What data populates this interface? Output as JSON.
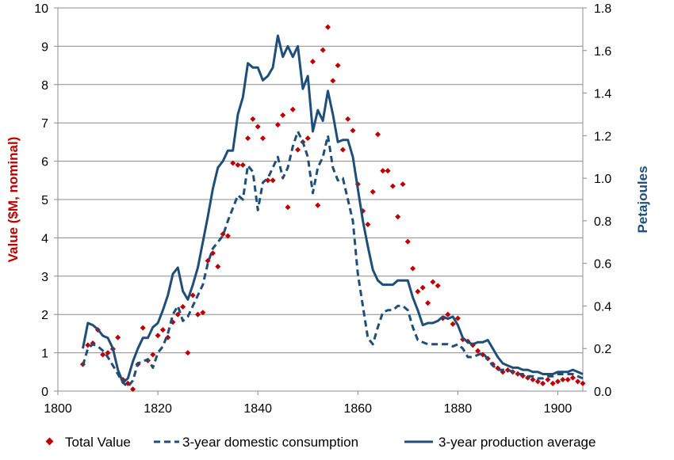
{
  "chart_data": {
    "type": "line",
    "title": "",
    "xlabel": "",
    "ylabel_left": "Value ($M, nominal)",
    "ylabel_right": "Petajoules",
    "xlim": [
      1800,
      1905
    ],
    "ylim_left": [
      0,
      10
    ],
    "ylim_right": [
      0,
      1.8
    ],
    "x_ticks": [
      "1800",
      "1820",
      "1840",
      "1860",
      "1880",
      "1900"
    ],
    "x_tick_values": [
      1800,
      1820,
      1840,
      1860,
      1880,
      1900
    ],
    "y_left_ticks": [
      "0",
      "1",
      "2",
      "3",
      "4",
      "5",
      "6",
      "7",
      "8",
      "9",
      "10"
    ],
    "y_left_tick_values": [
      0,
      1,
      2,
      3,
      4,
      5,
      6,
      7,
      8,
      9,
      10
    ],
    "y_right_ticks": [
      "0.0",
      "0.2",
      "0.4",
      "0.6",
      "0.8",
      "1.0",
      "1.2",
      "1.4",
      "1.6",
      "1.8"
    ],
    "y_right_tick_values": [
      0,
      0.2,
      0.4,
      0.6,
      0.8,
      1.0,
      1.2,
      1.4,
      1.6,
      1.8
    ],
    "grid": true,
    "legend_position": "bottom",
    "series": [
      {
        "name": "Total Value",
        "kind": "scatter",
        "axis": "left",
        "color": "#c00000",
        "x": [
          1805,
          1806,
          1807,
          1808,
          1809,
          1810,
          1811,
          1812,
          1813,
          1814,
          1815,
          1816,
          1817,
          1818,
          1819,
          1820,
          1821,
          1822,
          1823,
          1824,
          1825,
          1826,
          1827,
          1828,
          1829,
          1830,
          1831,
          1832,
          1833,
          1834,
          1835,
          1836,
          1837,
          1838,
          1839,
          1840,
          1841,
          1842,
          1843,
          1844,
          1845,
          1846,
          1847,
          1848,
          1849,
          1850,
          1851,
          1852,
          1853,
          1854,
          1855,
          1856,
          1857,
          1858,
          1859,
          1860,
          1861,
          1862,
          1863,
          1864,
          1865,
          1866,
          1867,
          1868,
          1869,
          1870,
          1871,
          1872,
          1873,
          1874,
          1875,
          1876,
          1877,
          1878,
          1879,
          1880,
          1881,
          1882,
          1883,
          1884,
          1885,
          1886,
          1887,
          1888,
          1889,
          1890,
          1891,
          1892,
          1893,
          1894,
          1895,
          1896,
          1897,
          1898,
          1899,
          1900,
          1901,
          1902,
          1903,
          1904,
          1905
        ],
        "y": [
          0.7,
          1.2,
          1.25,
          1.6,
          0.95,
          1.0,
          1.1,
          1.4,
          0.3,
          0.2,
          0.05,
          0.7,
          1.65,
          0.8,
          0.95,
          1.45,
          1.6,
          1.4,
          1.8,
          2.0,
          2.2,
          1.0,
          2.5,
          2.0,
          2.05,
          3.4,
          3.6,
          3.25,
          4.1,
          4.05,
          5.95,
          5.9,
          5.9,
          6.6,
          7.1,
          6.9,
          6.6,
          5.5,
          5.5,
          6.95,
          7.2,
          4.8,
          7.35,
          6.3,
          6.5,
          6.6,
          8.6,
          4.85,
          8.9,
          9.5,
          8.1,
          8.5,
          6.3,
          7.1,
          6.8,
          5.4,
          4.7,
          4.35,
          5.2,
          6.7,
          5.75,
          5.75,
          5.35,
          4.55,
          5.4,
          3.9,
          3.2,
          2.6,
          2.7,
          2.3,
          2.85,
          2.75,
          1.9,
          2.0,
          1.75,
          1.9,
          1.35,
          1.3,
          1.2,
          1.05,
          0.95,
          0.85,
          0.7,
          0.6,
          0.5,
          0.55,
          0.5,
          0.45,
          0.4,
          0.35,
          0.3,
          0.25,
          0.2,
          0.3,
          0.2,
          0.25,
          0.3,
          0.3,
          0.35,
          0.25,
          0.2
        ]
      },
      {
        "name": "3-year domestic consumption",
        "kind": "line",
        "style": "dashed",
        "axis": "right",
        "color": "#1f4e79",
        "x": [
          1805,
          1806,
          1807,
          1808,
          1809,
          1810,
          1811,
          1812,
          1813,
          1814,
          1815,
          1816,
          1817,
          1818,
          1819,
          1820,
          1821,
          1822,
          1823,
          1824,
          1825,
          1826,
          1827,
          1828,
          1829,
          1830,
          1831,
          1832,
          1833,
          1834,
          1835,
          1836,
          1837,
          1838,
          1839,
          1840,
          1841,
          1842,
          1843,
          1844,
          1845,
          1846,
          1847,
          1848,
          1849,
          1850,
          1851,
          1852,
          1853,
          1854,
          1855,
          1856,
          1857,
          1858,
          1859,
          1860,
          1861,
          1862,
          1863,
          1864,
          1865,
          1866,
          1867,
          1868,
          1869,
          1870,
          1871,
          1872,
          1873,
          1874,
          1875,
          1876,
          1877,
          1878,
          1879,
          1880,
          1881,
          1882,
          1883,
          1884,
          1885,
          1886,
          1887,
          1888,
          1889,
          1890,
          1891,
          1892,
          1893,
          1894,
          1895,
          1896,
          1897,
          1898,
          1899,
          1900,
          1901,
          1902,
          1903,
          1904,
          1905
        ],
        "y": [
          0.12,
          0.2,
          0.22,
          0.21,
          0.19,
          0.16,
          0.12,
          0.08,
          0.04,
          0.02,
          0.05,
          0.13,
          0.14,
          0.15,
          0.11,
          0.18,
          0.21,
          0.27,
          0.36,
          0.4,
          0.33,
          0.35,
          0.4,
          0.45,
          0.5,
          0.6,
          0.67,
          0.7,
          0.73,
          0.8,
          0.86,
          0.92,
          0.9,
          1.06,
          1.03,
          0.85,
          0.98,
          1.0,
          1.05,
          1.1,
          1.0,
          1.05,
          1.15,
          1.22,
          1.17,
          1.1,
          0.93,
          1.05,
          1.1,
          1.2,
          1.05,
          0.99,
          1.0,
          0.9,
          0.8,
          0.55,
          0.4,
          0.25,
          0.22,
          0.3,
          0.37,
          0.38,
          0.38,
          0.4,
          0.4,
          0.38,
          0.3,
          0.24,
          0.23,
          0.22,
          0.22,
          0.22,
          0.22,
          0.22,
          0.21,
          0.22,
          0.2,
          0.16,
          0.16,
          0.17,
          0.18,
          0.15,
          0.12,
          0.1,
          0.1,
          0.1,
          0.09,
          0.08,
          0.08,
          0.07,
          0.07,
          0.06,
          0.06,
          0.07,
          0.07,
          0.08,
          0.08,
          0.08,
          0.08,
          0.07,
          0.06
        ]
      },
      {
        "name": "3-year production average",
        "kind": "line",
        "style": "solid",
        "axis": "right",
        "color": "#1f4e79",
        "x": [
          1805,
          1806,
          1807,
          1808,
          1809,
          1810,
          1811,
          1812,
          1813,
          1814,
          1815,
          1816,
          1817,
          1818,
          1819,
          1820,
          1821,
          1822,
          1823,
          1824,
          1825,
          1826,
          1827,
          1828,
          1829,
          1830,
          1831,
          1832,
          1833,
          1834,
          1835,
          1836,
          1837,
          1838,
          1839,
          1840,
          1841,
          1842,
          1843,
          1844,
          1845,
          1846,
          1847,
          1848,
          1849,
          1850,
          1851,
          1852,
          1853,
          1854,
          1855,
          1856,
          1857,
          1858,
          1859,
          1860,
          1861,
          1862,
          1863,
          1864,
          1865,
          1866,
          1867,
          1868,
          1869,
          1870,
          1871,
          1872,
          1873,
          1874,
          1875,
          1876,
          1877,
          1878,
          1879,
          1880,
          1881,
          1882,
          1883,
          1884,
          1885,
          1886,
          1887,
          1888,
          1889,
          1890,
          1891,
          1892,
          1893,
          1894,
          1895,
          1896,
          1897,
          1898,
          1899,
          1900,
          1901,
          1902,
          1903,
          1904,
          1905
        ],
        "y": [
          0.2,
          0.32,
          0.31,
          0.29,
          0.26,
          0.25,
          0.2,
          0.1,
          0.04,
          0.06,
          0.14,
          0.2,
          0.25,
          0.25,
          0.3,
          0.32,
          0.38,
          0.45,
          0.55,
          0.58,
          0.47,
          0.43,
          0.5,
          0.58,
          0.7,
          0.82,
          0.95,
          1.05,
          1.08,
          1.13,
          1.13,
          1.3,
          1.38,
          1.54,
          1.52,
          1.52,
          1.46,
          1.48,
          1.52,
          1.67,
          1.57,
          1.62,
          1.57,
          1.62,
          1.42,
          1.48,
          1.22,
          1.32,
          1.27,
          1.41,
          1.3,
          1.17,
          1.18,
          1.18,
          1.1,
          0.95,
          0.8,
          0.68,
          0.57,
          0.52,
          0.5,
          0.5,
          0.5,
          0.52,
          0.52,
          0.52,
          0.44,
          0.38,
          0.31,
          0.32,
          0.32,
          0.33,
          0.35,
          0.34,
          0.35,
          0.31,
          0.25,
          0.23,
          0.22,
          0.23,
          0.23,
          0.24,
          0.2,
          0.16,
          0.13,
          0.12,
          0.11,
          0.11,
          0.1,
          0.1,
          0.09,
          0.09,
          0.08,
          0.08,
          0.08,
          0.09,
          0.09,
          0.09,
          0.1,
          0.09,
          0.08
        ]
      }
    ]
  }
}
